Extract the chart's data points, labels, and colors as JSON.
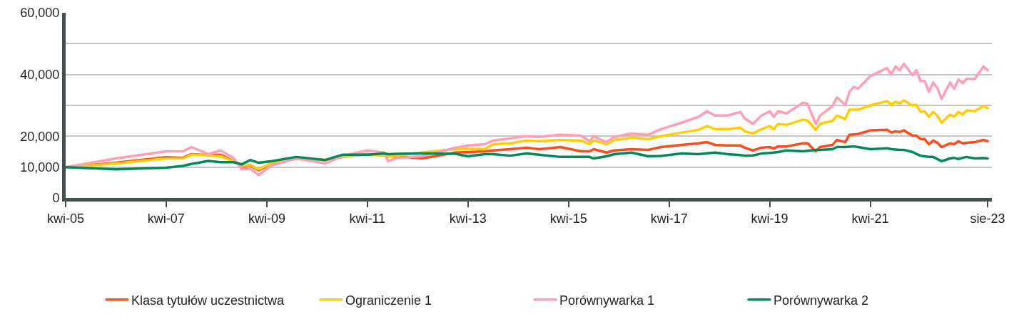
{
  "chart_data": {
    "type": "line",
    "x": [
      "2005-04",
      "2006-04",
      "2007-04",
      "2007-08",
      "2007-10",
      "2008-02",
      "2008-05",
      "2008-08",
      "2008-10",
      "2008-12",
      "2009-02",
      "2009-05",
      "2009-11",
      "2010-06",
      "2010-10",
      "2011-04",
      "2011-08",
      "2011-09",
      "2011-11",
      "2012-05",
      "2013-01",
      "2013-04",
      "2013-08",
      "2013-10",
      "2014-02",
      "2014-06",
      "2014-09",
      "2015-02",
      "2015-07",
      "2015-09",
      "2015-10",
      "2016-01",
      "2016-03",
      "2016-07",
      "2016-11",
      "2017-02",
      "2017-07",
      "2017-11",
      "2018-01",
      "2018-03",
      "2018-06",
      "2018-09",
      "2018-10",
      "2018-12",
      "2019-02",
      "2019-04",
      "2019-05",
      "2019-06",
      "2019-08",
      "2019-12",
      "2020-01",
      "2020-03",
      "2020-04",
      "2020-07",
      "2020-08",
      "2020-10",
      "2020-11",
      "2020-12",
      "2021-01",
      "2021-04",
      "2021-08",
      "2021-09",
      "2021-10",
      "2021-11",
      "2021-12",
      "2022-02",
      "2022-03",
      "2022-04",
      "2022-05",
      "2022-06",
      "2022-07",
      "2022-08",
      "2022-09",
      "2022-11",
      "2022-12",
      "2023-01",
      "2023-02",
      "2023-03",
      "2023-05",
      "2023-07",
      "2023-08"
    ],
    "series": [
      {
        "name": "Klasa tytułów uczestnictwa",
        "color": "#ff4a1c",
        "values": [
          10000,
          11400,
          13200,
          13000,
          14200,
          13900,
          14000,
          12000,
          10300,
          10500,
          9000,
          11000,
          12800,
          12300,
          13300,
          14200,
          13800,
          13500,
          13600,
          12800,
          14700,
          14900,
          15100,
          15400,
          15800,
          16300,
          15800,
          16500,
          15100,
          15100,
          15800,
          14700,
          15400,
          15800,
          15600,
          16500,
          17200,
          17700,
          18100,
          17200,
          17000,
          17000,
          16300,
          15400,
          16300,
          16500,
          16000,
          16700,
          16700,
          17700,
          17700,
          15100,
          16500,
          17200,
          18800,
          18100,
          20500,
          20600,
          20700,
          21900,
          22100,
          21200,
          21600,
          21400,
          21900,
          20200,
          20200,
          19100,
          19100,
          17400,
          18600,
          17900,
          16500,
          17700,
          17400,
          18400,
          17700,
          17900,
          18100,
          18800,
          18400
        ]
      },
      {
        "name": "Ograniczenie 1",
        "color": "#ffce00",
        "values": [
          10000,
          11200,
          12800,
          12800,
          14000,
          13800,
          13500,
          11900,
          10500,
          10700,
          9300,
          11200,
          12800,
          12300,
          13300,
          14200,
          13800,
          13500,
          13800,
          14700,
          15800,
          16000,
          15800,
          17400,
          17700,
          18600,
          18400,
          18800,
          18600,
          17400,
          18600,
          17400,
          18800,
          19500,
          19100,
          20000,
          21200,
          22100,
          23300,
          22300,
          22300,
          22800,
          21600,
          20900,
          22300,
          23300,
          22300,
          24000,
          23700,
          25400,
          25100,
          22100,
          24000,
          25000,
          26700,
          25600,
          28600,
          28600,
          28600,
          30000,
          31400,
          30200,
          31200,
          30700,
          31600,
          30000,
          30200,
          27900,
          28100,
          26300,
          27900,
          26700,
          24400,
          27000,
          26300,
          27900,
          27000,
          28400,
          28100,
          29800,
          29100
        ]
      },
      {
        "name": "Porównywarka 1",
        "color": "#ff9eb5",
        "values": [
          10000,
          12800,
          15100,
          15100,
          16500,
          14200,
          15400,
          13000,
          9300,
          9500,
          7400,
          10500,
          12800,
          11200,
          13500,
          15400,
          14700,
          11900,
          13000,
          13500,
          16300,
          17000,
          17400,
          18600,
          19300,
          20000,
          19800,
          20500,
          20200,
          18400,
          20000,
          18100,
          19800,
          20900,
          20500,
          22300,
          24400,
          26300,
          28100,
          26700,
          26700,
          27900,
          25800,
          24000,
          26700,
          28100,
          26300,
          28100,
          27400,
          30900,
          30500,
          24000,
          26700,
          29800,
          32600,
          30200,
          34400,
          36000,
          35400,
          39500,
          42100,
          40000,
          42600,
          41400,
          43500,
          39800,
          41400,
          37900,
          37900,
          34400,
          37400,
          35600,
          32100,
          37400,
          35400,
          38400,
          37200,
          38600,
          38600,
          42600,
          41400
        ]
      },
      {
        "name": "Porównywarka 2",
        "color": "#008a5a",
        "values": [
          10000,
          9300,
          9800,
          10400,
          11000,
          12000,
          11600,
          11600,
          10900,
          12300,
          11400,
          11900,
          13300,
          12300,
          14000,
          14000,
          14400,
          14200,
          14300,
          14400,
          14300,
          13500,
          14200,
          14200,
          13700,
          14400,
          14000,
          13300,
          13300,
          13300,
          12800,
          13500,
          14200,
          14700,
          13500,
          13600,
          14400,
          14200,
          14500,
          14700,
          14200,
          13900,
          13700,
          13800,
          14400,
          14600,
          14700,
          14900,
          15400,
          15100,
          15300,
          15600,
          15600,
          15800,
          16500,
          16500,
          16600,
          16700,
          16500,
          15800,
          16100,
          15800,
          15700,
          15600,
          15600,
          14900,
          14300,
          13700,
          13500,
          13300,
          13300,
          12600,
          11900,
          12800,
          13000,
          12600,
          13000,
          13300,
          12800,
          12900,
          12800
        ]
      }
    ],
    "xlim": [
      "2005-04",
      "2023-09"
    ],
    "xticks": [
      {
        "value": "2005-04",
        "label": "kwi-05"
      },
      {
        "value": "2007-04",
        "label": "kwi-07"
      },
      {
        "value": "2009-04",
        "label": "kwi-09"
      },
      {
        "value": "2011-04",
        "label": "kwi-11"
      },
      {
        "value": "2013-04",
        "label": "kwi-13"
      },
      {
        "value": "2015-04",
        "label": "kwi-15"
      },
      {
        "value": "2017-04",
        "label": "kwi-17"
      },
      {
        "value": "2019-04",
        "label": "kwi-19"
      },
      {
        "value": "2021-04",
        "label": "kwi-21"
      },
      {
        "value": "2023-08",
        "label": "sie-23"
      }
    ],
    "ylim": [
      0,
      60000
    ],
    "yticks": [
      0,
      {
        "value": 10000,
        "label": "10,000"
      },
      {
        "value": 20000,
        "label": "20,000"
      },
      {
        "value": 30000,
        "label": null
      },
      {
        "value": 40000,
        "label": "40,000"
      },
      {
        "value": 50000,
        "label": null
      },
      {
        "value": 60000,
        "label": "60,000"
      }
    ],
    "grid": "y",
    "legend": "bottom",
    "marker": "none",
    "line_style": "solid"
  }
}
